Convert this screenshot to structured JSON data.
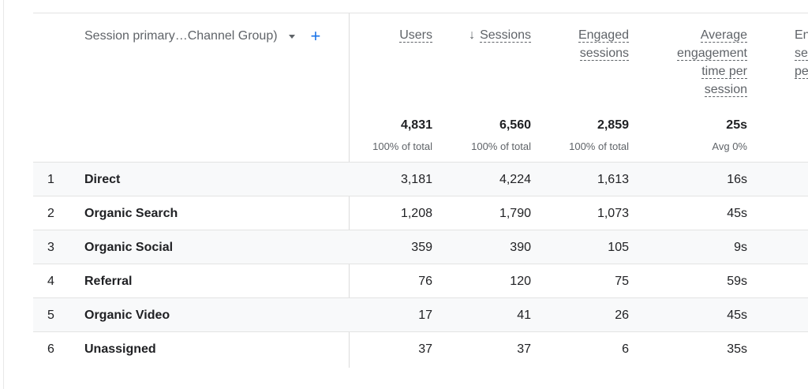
{
  "dimension": {
    "label": "Session primary…Channel Group)"
  },
  "columns": [
    {
      "label_lines": [
        "Users"
      ],
      "sorted": false
    },
    {
      "label_lines": [
        "Sessions"
      ],
      "sorted": true
    },
    {
      "label_lines": [
        "Engaged",
        "sessions"
      ],
      "sorted": false
    },
    {
      "label_lines": [
        "Average",
        "engagement",
        "time per",
        "session"
      ],
      "sorted": false
    },
    {
      "label_lines": [
        "En",
        "se",
        "pe"
      ],
      "sorted": false
    }
  ],
  "totals": [
    {
      "value": "4,831",
      "sub": "100% of total"
    },
    {
      "value": "6,560",
      "sub": "100% of total"
    },
    {
      "value": "2,859",
      "sub": "100% of total"
    },
    {
      "value": "25s",
      "sub": "Avg 0%"
    }
  ],
  "rows": [
    {
      "index": "1",
      "name": "Direct",
      "users": "3,181",
      "sessions": "4,224",
      "engaged": "1,613",
      "avg_time": "16s"
    },
    {
      "index": "2",
      "name": "Organic Search",
      "users": "1,208",
      "sessions": "1,790",
      "engaged": "1,073",
      "avg_time": "45s"
    },
    {
      "index": "3",
      "name": "Organic Social",
      "users": "359",
      "sessions": "390",
      "engaged": "105",
      "avg_time": "9s"
    },
    {
      "index": "4",
      "name": "Referral",
      "users": "76",
      "sessions": "120",
      "engaged": "75",
      "avg_time": "59s"
    },
    {
      "index": "5",
      "name": "Organic Video",
      "users": "17",
      "sessions": "41",
      "engaged": "26",
      "avg_time": "45s"
    },
    {
      "index": "6",
      "name": "Unassigned",
      "users": "37",
      "sessions": "37",
      "engaged": "6",
      "avg_time": "35s"
    }
  ]
}
